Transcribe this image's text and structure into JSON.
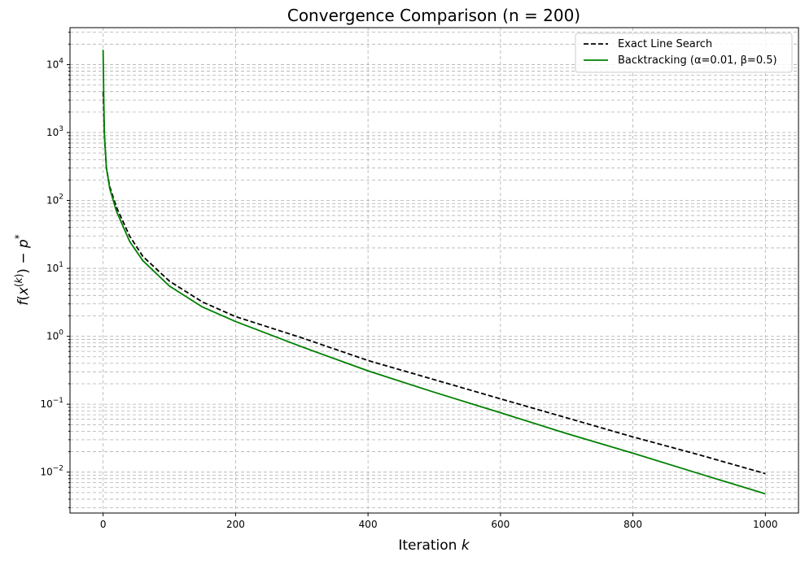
{
  "chart_data": {
    "type": "line",
    "title": "Convergence Comparison (n = 200)",
    "xlabel": "Iteration k",
    "ylabel": "f(x(k)) − p*",
    "yscale": "log",
    "xlim": [
      -50,
      1050
    ],
    "ylim": [
      0.0025,
      35000
    ],
    "xticks": [
      0,
      200,
      400,
      600,
      800,
      1000
    ],
    "yticks": [
      0.01,
      0.1,
      1,
      10,
      100,
      1000,
      10000
    ],
    "ytick_labels": [
      {
        "base": "10",
        "exp": "−2"
      },
      {
        "base": "10",
        "exp": "−1"
      },
      {
        "base": "10",
        "exp": "0"
      },
      {
        "base": "10",
        "exp": "1"
      },
      {
        "base": "10",
        "exp": "2"
      },
      {
        "base": "10",
        "exp": "3"
      },
      {
        "base": "10",
        "exp": "4"
      }
    ],
    "grid": "both, dashed, minor on y",
    "legend_position": "top-right",
    "series": [
      {
        "name": "Exact Line Search",
        "color": "#000000",
        "style": "dashed",
        "x": [
          0,
          1,
          2,
          5,
          10,
          20,
          40,
          60,
          100,
          150,
          200,
          300,
          400,
          500,
          600,
          700,
          800,
          900,
          1000
        ],
        "y": [
          4000,
          2000,
          900,
          300,
          160,
          80,
          30,
          15,
          6.5,
          3.2,
          1.95,
          0.95,
          0.44,
          0.23,
          0.12,
          0.063,
          0.033,
          0.018,
          0.0095
        ]
      },
      {
        "name": "Backtracking (α=0.01, β=0.5)",
        "color": "#008000",
        "style": "solid",
        "x": [
          0,
          1,
          2,
          5,
          10,
          20,
          40,
          60,
          100,
          150,
          200,
          300,
          400,
          500,
          600,
          700,
          800,
          900,
          1000
        ],
        "y": [
          16500,
          3000,
          900,
          300,
          150,
          70,
          25,
          13,
          5.5,
          2.7,
          1.65,
          0.7,
          0.31,
          0.15,
          0.075,
          0.037,
          0.019,
          0.0095,
          0.0048
        ]
      }
    ]
  }
}
